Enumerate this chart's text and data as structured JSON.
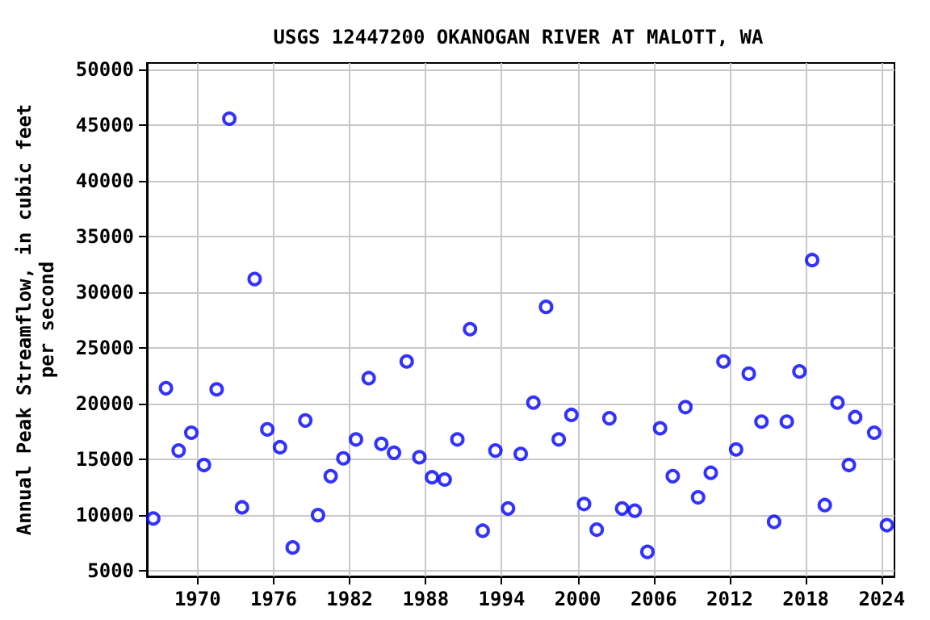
{
  "chart_data": {
    "type": "scatter",
    "title": "USGS 12447200 OKANOGAN RIVER AT MALOTT, WA",
    "ylabel": "Annual Peak Streamflow, in cubic feet\nper second",
    "x": [
      1966.5,
      1967.5,
      1968.5,
      1969.5,
      1970.5,
      1971.5,
      1972.5,
      1973.5,
      1974.5,
      1975.5,
      1976.5,
      1977.5,
      1978.5,
      1979.5,
      1980.5,
      1981.5,
      1982.5,
      1983.5,
      1984.5,
      1985.5,
      1986.5,
      1987.5,
      1988.5,
      1989.5,
      1990.5,
      1991.5,
      1992.5,
      1993.5,
      1994.5,
      1995.5,
      1996.5,
      1997.5,
      1998.5,
      1999.5,
      2000.5,
      2001.5,
      2002.5,
      2003.5,
      2004.5,
      2005.5,
      2006.5,
      2007.5,
      2008.5,
      2009.5,
      2010.5,
      2011.5,
      2012.5,
      2013.5,
      2014.5,
      2015.5,
      2016.5,
      2017.5,
      2018.5,
      2019.5,
      2020.5,
      2021.4,
      2021.9,
      2023.4,
      2024.4
    ],
    "series": [
      {
        "color": "#0000ff",
        "values": [
          9700,
          21400,
          15800,
          17400,
          14500,
          21300,
          45600,
          10700,
          31200,
          17700,
          16100,
          7100,
          18500,
          10000,
          13500,
          15100,
          16800,
          22300,
          16400,
          15600,
          23800,
          15200,
          13400,
          13200,
          16800,
          26700,
          8600,
          15800,
          10600,
          15500,
          20100,
          28700,
          16800,
          19000,
          11000,
          8700,
          18700,
          10600,
          10400,
          6700,
          17800,
          13500,
          19700,
          11600,
          13800,
          23800,
          15900,
          22700,
          18400,
          9400,
          18400,
          22900,
          32900,
          10900,
          20100,
          14500,
          18800,
          17400,
          9100
        ]
      }
    ],
    "xlim": [
      1966,
      2025
    ],
    "xticks": [
      1970,
      1976,
      1982,
      1988,
      1994,
      2000,
      2006,
      2012,
      2018,
      2024
    ],
    "ylim": [
      4500,
      50600
    ],
    "yticks": [
      5000,
      10000,
      15000,
      20000,
      25000,
      30000,
      35000,
      40000,
      45000,
      50000
    ],
    "grid": true,
    "marker": "circle"
  }
}
